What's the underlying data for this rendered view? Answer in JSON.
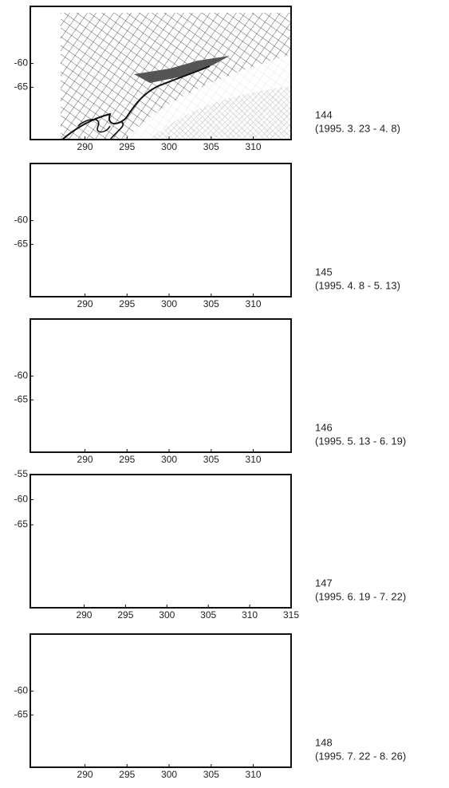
{
  "panels": [
    {
      "cycle": "144",
      "dates": "(1995. 3. 23 - 4. 8)",
      "xlim": [
        283.5,
        314.5
      ],
      "ylim": [
        -76,
        -48
      ],
      "xticks": [
        290,
        295,
        300,
        305,
        310
      ],
      "yticks": [
        -60,
        -65
      ]
    },
    {
      "cycle": "145",
      "dates": "(1995. 4. 8 - 5. 13)",
      "xlim": [
        283.5,
        314.5
      ],
      "ylim": [
        -76,
        -48
      ],
      "xticks": [
        290,
        295,
        300,
        305,
        310
      ],
      "yticks": [
        -60,
        -65
      ]
    },
    {
      "cycle": "146",
      "dates": "(1995. 5. 13 - 6. 19)",
      "xlim": [
        283.5,
        314.5
      ],
      "ylim": [
        -76,
        -48
      ],
      "xticks": [
        290,
        295,
        300,
        305,
        310
      ],
      "yticks": [
        -60,
        -65
      ]
    },
    {
      "cycle": "147",
      "dates": "(1995. 6. 19 - 7. 22)",
      "xlim": [
        283.5,
        315
      ],
      "ylim": [
        -81.5,
        -55
      ],
      "xticks": [
        290,
        295,
        300,
        305,
        310,
        315
      ],
      "yticks": [
        -55,
        -60,
        -65
      ]
    },
    {
      "cycle": "148",
      "dates": "(1995. 7. 22 - 8. 26)",
      "xlim": [
        283.5,
        314.5
      ],
      "ylim": [
        -76,
        -48
      ],
      "xticks": [
        290,
        295,
        300,
        305,
        310
      ],
      "yticks": [
        -60,
        -65
      ]
    }
  ]
}
